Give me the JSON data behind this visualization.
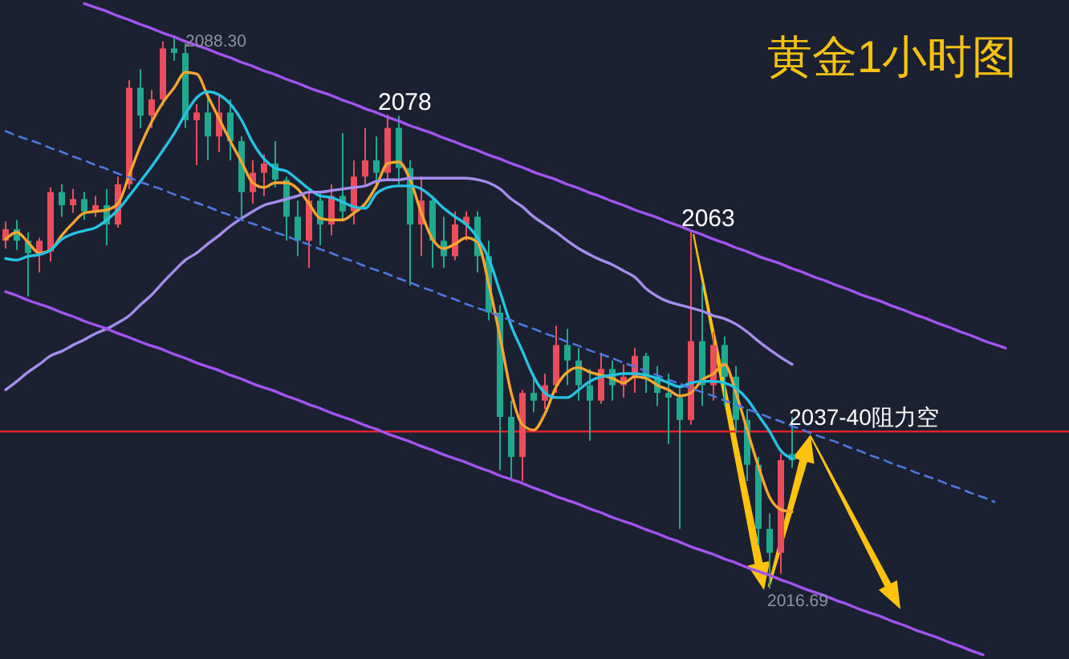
{
  "chart_data": {
    "type": "candlestick",
    "title": "黄金1小时图",
    "tick_labels": false,
    "categories": [
      null,
      null,
      null,
      null,
      null,
      null,
      null,
      null,
      null,
      null,
      null,
      null,
      null,
      null,
      null,
      null,
      null,
      null,
      null,
      null,
      null,
      null,
      null,
      null,
      null,
      null,
      null,
      null,
      null,
      null,
      null,
      null,
      null,
      null,
      null,
      null,
      null,
      null,
      null,
      null,
      null,
      null,
      null,
      null,
      null,
      null,
      null,
      null,
      null,
      null,
      null,
      null,
      null,
      null,
      null,
      null,
      null,
      null,
      null,
      null,
      null,
      null,
      null,
      null,
      null,
      null,
      null,
      null,
      null,
      null,
      null,
      null,
      null,
      null,
      null,
      null,
      null,
      null,
      null,
      null,
      null,
      null,
      null,
      null,
      null,
      null,
      null,
      null,
      null,
      null
    ],
    "ohlc": [
      [
        2061.7,
        2064.2,
        2060.7,
        2063.2
      ],
      [
        2063.2,
        2064.4,
        2060.5,
        2061.7
      ],
      [
        2061.7,
        2062.8,
        2054.5,
        2060.1
      ],
      [
        2060.1,
        2062.1,
        2057.6,
        2061.7
      ],
      [
        2060.3,
        2068.6,
        2059.0,
        2068.0
      ],
      [
        2068.0,
        2069.0,
        2064.8,
        2066.3
      ],
      [
        2066.3,
        2068.4,
        2065.3,
        2067.1
      ],
      [
        2067.1,
        2068.0,
        2064.4,
        2065.5
      ],
      [
        2065.5,
        2067.5,
        2064.8,
        2066.3
      ],
      [
        2066.3,
        2068.4,
        2061.1,
        2063.8
      ],
      [
        2063.8,
        2070.0,
        2063.4,
        2069.0
      ],
      [
        2069.0,
        2082.5,
        2068.4,
        2081.5
      ],
      [
        2081.5,
        2083.9,
        2076.3,
        2077.9
      ],
      [
        2077.9,
        2081.2,
        2076.3,
        2080.0
      ],
      [
        2080.0,
        2087.5,
        2079.2,
        2086.6
      ],
      [
        2086.6,
        2088.3,
        2085.0,
        2086.0
      ],
      [
        2086.0,
        2087.3,
        2076.3,
        2077.3
      ],
      [
        2077.3,
        2079.4,
        2071.5,
        2078.3
      ],
      [
        2078.3,
        2081.0,
        2072.1,
        2075.2
      ],
      [
        2075.2,
        2080.4,
        2073.2,
        2078.3
      ],
      [
        2078.3,
        2080.0,
        2072.1,
        2074.6
      ],
      [
        2074.6,
        2075.2,
        2064.4,
        2068.0
      ],
      [
        2068.0,
        2072.1,
        2066.5,
        2070.5
      ],
      [
        2070.5,
        2072.9,
        2067.5,
        2071.7
      ],
      [
        2071.7,
        2074.6,
        2068.6,
        2069.6
      ],
      [
        2069.6,
        2070.0,
        2061.7,
        2064.8
      ],
      [
        2064.8,
        2066.9,
        2059.7,
        2061.7
      ],
      [
        2061.7,
        2068.0,
        2058.2,
        2066.9
      ],
      [
        2066.9,
        2068.0,
        2061.1,
        2063.8
      ],
      [
        2063.8,
        2069.0,
        2062.4,
        2067.5
      ],
      [
        2067.5,
        2075.6,
        2064.2,
        2065.5
      ],
      [
        2065.5,
        2072.1,
        2063.8,
        2070.0
      ],
      [
        2070.0,
        2076.3,
        2069.0,
        2072.1
      ],
      [
        2072.1,
        2075.2,
        2068.4,
        2070.5
      ],
      [
        2070.5,
        2078,
        2069.6,
        2076.3
      ],
      [
        2076.3,
        2077.9,
        2069.0,
        2071.1
      ],
      [
        2071.1,
        2072.1,
        2055.9,
        2063.8
      ],
      [
        2063.8,
        2070.0,
        2059.7,
        2066.9
      ],
      [
        2066.9,
        2067.5,
        2058.2,
        2061.7
      ],
      [
        2061.7,
        2064.8,
        2058.2,
        2059.7
      ],
      [
        2059.7,
        2065.5,
        2059.2,
        2063.8
      ],
      [
        2063.8,
        2065.5,
        2061.7,
        2064.8
      ],
      [
        2064.8,
        2065.5,
        2057.6,
        2059.7
      ],
      [
        2059.7,
        2061.7,
        2051.4,
        2052.4
      ],
      [
        2052.4,
        2053.4,
        2032.0,
        2038.9
      ],
      [
        2038.9,
        2041.0,
        2030.6,
        2033.7
      ],
      [
        2033.7,
        2042.4,
        2030.6,
        2042.0
      ],
      [
        2042.0,
        2044.5,
        2039.5,
        2041.0
      ],
      [
        2041.0,
        2044.5,
        2039.9,
        2043.0
      ],
      [
        2043.0,
        2050.7,
        2042.0,
        2048.2
      ],
      [
        2048.2,
        2050.3,
        2043.0,
        2046.2
      ],
      [
        2046.2,
        2047.8,
        2041.0,
        2043.0
      ],
      [
        2043.0,
        2045.1,
        2035.8,
        2041.0
      ],
      [
        2041.0,
        2047.2,
        2040.6,
        2045.1
      ],
      [
        2045.1,
        2046.2,
        2041.0,
        2043.0
      ],
      [
        2043.0,
        2045.7,
        2041.4,
        2044.1
      ],
      [
        2044.1,
        2047.8,
        2042.0,
        2046.8
      ],
      [
        2046.8,
        2047.2,
        2042.0,
        2044.1
      ],
      [
        2044.1,
        2045.5,
        2040.3,
        2042.0
      ],
      [
        2042.0,
        2044.5,
        2035.4,
        2041.4
      ],
      [
        2041.4,
        2043.0,
        2024.4,
        2038.5
      ],
      [
        2038.5,
        2063,
        2037.9,
        2048.7
      ],
      [
        2048.7,
        2056.1,
        2040.3,
        2043.0
      ],
      [
        2043.0,
        2049.9,
        2041.0,
        2048.2
      ],
      [
        2048.2,
        2049.3,
        2040.3,
        2044.1
      ],
      [
        2044.1,
        2045.5,
        2036.8,
        2038.5
      ],
      [
        2038.5,
        2039.9,
        2030.6,
        2032.7
      ],
      [
        2032.7,
        2033.7,
        2022.3,
        2024.4
      ],
      [
        2024.4,
        2026.4,
        2016.69,
        2021.3
      ],
      [
        2021.3,
        2034.1,
        2018.6,
        2033.3
      ],
      [
        2034.1,
        2038.9,
        2032.3,
        2033.3
      ],
      null,
      null,
      null,
      null,
      null,
      null,
      null,
      null,
      null,
      null,
      null,
      null,
      null,
      null,
      null,
      null,
      null,
      null,
      null
    ],
    "colors": [
      "#eb4d5c",
      "#20a98f",
      "#20a98f",
      "#eb4d5c",
      "#eb4d5c",
      "#20a98f",
      "#eb4d5c",
      "#20a98f",
      "#eb4d5c",
      "#20a98f",
      "#eb4d5c",
      "#eb4d5c",
      "#20a98f",
      "#eb4d5c",
      "#eb4d5c",
      "#20a98f",
      "#20a98f",
      "#eb4d5c",
      "#20a98f",
      "#eb4d5c",
      "#20a98f",
      "#20a98f",
      "#eb4d5c",
      "#eb4d5c",
      "#20a98f",
      "#20a98f",
      "#20a98f",
      "#eb4d5c",
      "#20a98f",
      "#eb4d5c",
      "#20a98f",
      "#eb4d5c",
      "#eb4d5c",
      "#20a98f",
      "#eb4d5c",
      "#20a98f",
      "#20a98f",
      "#eb4d5c",
      "#20a98f",
      "#20a98f",
      "#eb4d5c",
      "#eb4d5c",
      "#20a98f",
      "#20a98f",
      "#20a98f",
      "#20a98f",
      "#eb4d5c",
      "#20a98f",
      "#eb4d5c",
      "#eb4d5c",
      "#20a98f",
      "#20a98f",
      "#20a98f",
      "#eb4d5c",
      "#20a98f",
      "#eb4d5c",
      "#eb4d5c",
      "#20a98f",
      "#20a98f",
      "#20a98f",
      "#20a98f",
      "#eb4d5c",
      "#20a98f",
      "#eb4d5c",
      "#20a98f",
      "#20a98f",
      "#20a98f",
      "#20a98f",
      "#20a98f",
      "#eb4d5c",
      "#20a98f",
      null,
      null,
      null,
      null,
      null,
      null,
      null,
      null,
      null,
      null,
      null,
      null,
      null,
      null,
      null,
      null,
      null,
      null,
      null
    ],
    "series": [
      {
        "type": "line",
        "color": "#f6a52e",
        "values": [
          2061.9,
          2062.8,
          2061.5,
          2060.1,
          2060.5,
          2062.4,
          2064.0,
          2065.3,
          2065.5,
          2065.7,
          2066.5,
          2070.2,
          2074.0,
          2077.1,
          2079.6,
          2081.5,
          2083.5,
          2083.3,
          2080.4,
          2077.5,
          2074.6,
          2071.9,
          2069.2,
          2068.6,
          2069.2,
          2069.2,
          2068.4,
          2066.5,
          2064.6,
          2064.4,
          2064.4,
          2065.3,
          2066.5,
          2068.8,
          2071.7,
          2071.9,
          2069.6,
          2065.3,
          2061.9,
          2060.7,
          2061.3,
          2062.1,
          2061.5,
          2056.1,
          2049.3,
          2042.0,
          2037.9,
          2037.2,
          2039.3,
          2042.8,
          2044.7,
          2045.3,
          2044.7,
          2044.3,
          2043.9,
          2043.3,
          2044.1,
          2043.9,
          2043.0,
          2042.4,
          2041.6,
          2042.0,
          2043.7,
          2044.5,
          2045.7,
          2042.0,
          2037.2,
          2032.5,
          2028.5,
          2026.9,
          2026.6,
          null,
          null,
          null,
          null,
          null,
          null,
          null,
          null,
          null,
          null,
          null,
          null,
          null,
          null,
          null,
          null,
          null,
          null,
          null
        ]
      },
      {
        "type": "line",
        "color": "#25c2e3",
        "values": [
          2059.4,
          2059.2,
          2059.7,
          2059.9,
          2060.5,
          2061.9,
          2062.6,
          2063.0,
          2063.4,
          2064.4,
          2065.7,
          2067.5,
          2069.4,
          2071.3,
          2073.4,
          2075.6,
          2078.1,
          2080.2,
          2081.0,
          2080.6,
          2079.4,
          2077.3,
          2074.4,
          2072.3,
          2071.1,
          2070.7,
          2069.6,
          2068.4,
          2067.5,
          2067.3,
          2066.7,
          2066.1,
          2065.9,
          2067.8,
          2068.6,
          2068.8,
          2068.8,
          2068.4,
          2067.3,
          2065.9,
          2064.8,
          2063.8,
          2062.1,
          2059.4,
          2055.1,
          2050.7,
          2047.4,
          2044.1,
          2042.0,
          2041.4,
          2041.4,
          2042.4,
          2043.5,
          2044.1,
          2044.3,
          2044.5,
          2044.5,
          2044.3,
          2043.9,
          2043.3,
          2042.8,
          2043.3,
          2043.5,
          2043.5,
          2043.3,
          2042.6,
          2041.2,
          2039.1,
          2037.0,
          2034.5,
          2033.5,
          null,
          null,
          null,
          null,
          null,
          null,
          null,
          null,
          null,
          null,
          null,
          null,
          null,
          null,
          null,
          null,
          null,
          null,
          null
        ]
      },
      {
        "type": "line",
        "color": "#a58df0",
        "values": [
          2042.4,
          2043.5,
          2044.7,
          2045.7,
          2046.8,
          2047.4,
          2048.2,
          2048.9,
          2049.7,
          2050.3,
          2051.1,
          2052.0,
          2053.4,
          2054.7,
          2056.3,
          2057.8,
          2059.2,
          2060.1,
          2061.3,
          2062.4,
          2063.6,
          2064.6,
          2065.5,
          2066.3,
          2066.7,
          2067.1,
          2067.5,
          2068.0,
          2068.0,
          2068.2,
          2068.4,
          2068.6,
          2068.8,
          2069.4,
          2069.6,
          2069.6,
          2069.8,
          2069.8,
          2069.8,
          2069.8,
          2069.8,
          2069.8,
          2069.6,
          2069.2,
          2068.4,
          2067.1,
          2066.1,
          2064.8,
          2063.8,
          2062.8,
          2061.7,
          2060.7,
          2059.9,
          2059.2,
          2058.6,
          2057.8,
          2057.0,
          2055.5,
          2054.5,
          2053.8,
          2053.4,
          2053.0,
          2052.6,
          2052.0,
          2051.6,
          2050.9,
          2049.9,
          2048.7,
          2047.6,
          2046.6,
          2045.7,
          null,
          null,
          null,
          null,
          null,
          null,
          null,
          null,
          null,
          null,
          null,
          null,
          null,
          null,
          null,
          null,
          null,
          null,
          null
        ]
      },
      {
        "type": "line",
        "color": "#a552f2",
        "values": [
          null,
          null,
          null,
          null,
          null,
          null,
          null,
          2092.4,
          2091.9,
          2091.4,
          2090.8,
          2090.3,
          2089.7,
          2089.2,
          2088.6,
          2088.1,
          2087.5,
          2087.0,
          2086.5,
          2085.9,
          2085.4,
          2084.8,
          2084.3,
          2083.7,
          2083.2,
          2082.6,
          2082.1,
          2081.5,
          2081.0,
          2080.5,
          2079.9,
          2079.4,
          2078.8,
          2078.3,
          2077.7,
          2077.2,
          2076.6,
          2076.1,
          2075.6,
          2075.0,
          2074.5,
          2073.9,
          2073.4,
          2072.8,
          2072.3,
          2071.7,
          2071.2,
          2070.6,
          2070.1,
          2069.6,
          2069.0,
          2068.5,
          2067.9,
          2067.4,
          2066.8,
          2066.3,
          2065.7,
          2065.2,
          2064.7,
          2064.1,
          2063.6,
          2063.0,
          2062.5,
          2061.9,
          2061.4,
          2060.8,
          2060.3,
          2059.7,
          2059.2,
          2058.7,
          2058.1,
          2057.6,
          2057.0,
          2056.5,
          2055.9,
          2055.4,
          2054.8,
          2054.3,
          2053.8,
          2053.2,
          2052.7,
          2052.1,
          2051.6,
          2051.0,
          2050.5,
          2049.9,
          2049.4,
          2048.8,
          2048.3,
          2047.8
        ]
      },
      {
        "type": "line",
        "color": "#a552f2",
        "values": [
          2055.1,
          2054.6,
          2054.0,
          2053.5,
          2053.0,
          2052.4,
          2051.9,
          2051.3,
          2050.8,
          2050.3,
          2049.7,
          2049.2,
          2048.6,
          2048.1,
          2047.6,
          2047.0,
          2046.5,
          2045.9,
          2045.4,
          2044.9,
          2044.3,
          2043.8,
          2043.2,
          2042.7,
          2042.2,
          2041.6,
          2041.1,
          2040.5,
          2040.0,
          2039.4,
          2038.9,
          2038.4,
          2037.8,
          2037.3,
          2036.7,
          2036.2,
          2035.7,
          2035.1,
          2034.6,
          2034.0,
          2033.5,
          2033.0,
          2032.4,
          2031.9,
          2031.3,
          2030.8,
          2030.3,
          2029.7,
          2029.2,
          2028.6,
          2028.1,
          2027.6,
          2027.0,
          2026.5,
          2025.9,
          2025.4,
          2024.9,
          2024.3,
          2023.8,
          2023.2,
          2022.7,
          2022.1,
          2021.6,
          2021.1,
          2020.5,
          2020.0,
          2019.4,
          2018.9,
          2018.4,
          2017.8,
          2017.3,
          2016.7,
          2016.2,
          2015.7,
          2015.1,
          2014.6,
          2014.0,
          2013.5,
          2013.0,
          2012.4,
          2011.9,
          2011.3,
          2010.8,
          2010.3,
          2009.7,
          2009.2,
          2008.6,
          2008.1,
          null,
          null
        ]
      },
      {
        "type": "line",
        "color": "#4d78e3",
        "line_style": "dashed",
        "values": [
          2075.9,
          2075.3,
          2074.8,
          2074.3,
          2073.7,
          2073.2,
          2072.6,
          2072.1,
          2071.5,
          2071.0,
          2070.4,
          2069.9,
          2069.3,
          2068.8,
          2068.3,
          2067.7,
          2067.2,
          2066.6,
          2066.1,
          2065.5,
          2065.0,
          2064.4,
          2063.9,
          2063.4,
          2062.8,
          2062.3,
          2061.7,
          2061.2,
          2060.6,
          2060.1,
          2059.5,
          2059.0,
          2058.4,
          2057.9,
          2057.4,
          2056.8,
          2056.3,
          2055.7,
          2055.2,
          2054.6,
          2054.1,
          2053.5,
          2053.0,
          2052.5,
          2051.9,
          2051.4,
          2050.8,
          2050.3,
          2049.7,
          2049.2,
          2048.6,
          2048.1,
          2047.5,
          2047.0,
          2046.5,
          2045.9,
          2045.4,
          2044.8,
          2044.3,
          2043.7,
          2043.2,
          2042.6,
          2042.1,
          2041.6,
          2041.0,
          2040.5,
          2039.9,
          2039.4,
          2038.8,
          2038.3,
          2037.7,
          2037.2,
          2036.6,
          2036.1,
          2035.6,
          2035.0,
          2034.5,
          2033.9,
          2033.4,
          2032.8,
          2032.3,
          2031.7,
          2031.2,
          2030.7,
          2030.1,
          2029.6,
          2029.0,
          2028.5,
          2027.9,
          null
        ]
      }
    ],
    "ref_lines": [
      {
        "axis": "y",
        "value": 2037,
        "label": "2037-40阻力空",
        "color": "#e3222d"
      }
    ],
    "annotations": [
      "2088.30",
      {
        "text": "2078",
        "y": 2078
      },
      {
        "text": "2063",
        "y": 2063
      },
      {
        "text": "2016.69",
        "y": 2016.69
      }
    ]
  }
}
